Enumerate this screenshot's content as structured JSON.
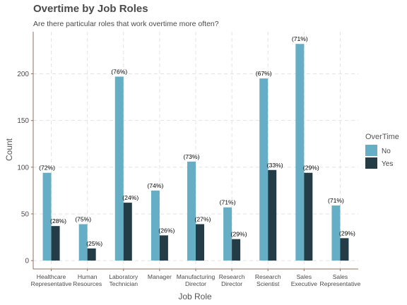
{
  "title": "Overtime by Job Roles",
  "subtitle": "Are there particular roles that work overtime more often?",
  "chart_data": {
    "type": "bar",
    "xlabel": "Job Role",
    "ylabel": "Count",
    "ylim": [
      -9,
      245
    ],
    "yticks": [
      0,
      50,
      100,
      150,
      200
    ],
    "grid": true,
    "legend_position": "right",
    "legend_title": "OverTime",
    "categories": [
      [
        "Healthcare",
        "Representative"
      ],
      [
        "Human",
        "Resources"
      ],
      [
        "Laboratory",
        "Technician"
      ],
      [
        "Manager"
      ],
      [
        "Manufacturing",
        "Director"
      ],
      [
        "Research",
        "Director"
      ],
      [
        "Research",
        "Scientist"
      ],
      [
        "Sales",
        "Executive"
      ],
      [
        "Sales",
        "Representative"
      ]
    ],
    "series": [
      {
        "name": "No",
        "color": "#66aec6",
        "values": [
          94,
          39,
          197,
          75,
          106,
          57,
          195,
          232,
          59
        ],
        "labels": [
          "(72%)",
          "(75%)",
          "(76%)",
          "(74%)",
          "(73%)",
          "(71%)",
          "(67%)",
          "(71%)",
          "(71%)"
        ]
      },
      {
        "name": "Yes",
        "color": "#233c46",
        "values": [
          37,
          13,
          62,
          27,
          39,
          23,
          97,
          94,
          24
        ],
        "labels": [
          "(28%)",
          "(25%)",
          "(24%)",
          "(26%)",
          "(27%)",
          "(29%)",
          "(33%)",
          "(29%)",
          "(29%)"
        ]
      }
    ]
  }
}
